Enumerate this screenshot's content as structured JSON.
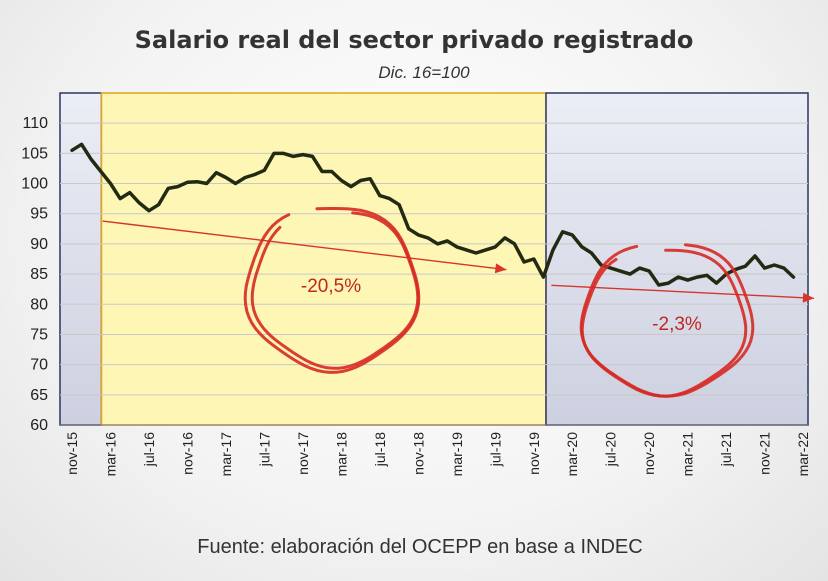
{
  "chart_data": {
    "type": "line",
    "title": "Salario real del sector privado registrado",
    "subtitle": "Dic. 16=100",
    "source": "Fuente: elaboración del OCEPP en base a INDEC",
    "xlabel": "",
    "ylabel": "",
    "ylim": [
      60,
      115
    ],
    "yticks": [
      60,
      65,
      70,
      75,
      80,
      85,
      90,
      95,
      100,
      105,
      110
    ],
    "x_tick_labels": [
      "nov-15",
      "mar-16",
      "jul-16",
      "nov-16",
      "mar-17",
      "jul-17",
      "nov-17",
      "mar-18",
      "jul-18",
      "nov-18",
      "mar-19",
      "jul-19",
      "nov-19",
      "mar-20",
      "jul-20",
      "nov-20",
      "mar-21",
      "jul-21",
      "nov-21",
      "mar-22"
    ],
    "start_month": "nov-15",
    "periods": [
      {
        "name": "period-2015",
        "from_index": 0,
        "to_index": 1,
        "color": "#cdd2e2"
      },
      {
        "name": "period-2016-2019",
        "from_index": 1,
        "to_index": 49,
        "color": "#fdf6b4"
      },
      {
        "name": "period-2020-2022",
        "from_index": 49,
        "to_index": 77,
        "color": "#d9dbe8"
      }
    ],
    "series": [
      {
        "name": "Salario real",
        "color": "#222a12",
        "values": [
          105.5,
          106.5,
          104,
          102,
          100,
          97.5,
          98.5,
          96.8,
          95.5,
          96.5,
          99.2,
          99.5,
          100.2,
          100.3,
          100,
          101.8,
          101,
          100,
          101,
          101.5,
          102.2,
          105,
          105,
          104.5,
          104.8,
          104.5,
          102,
          102,
          100.5,
          99.5,
          100.5,
          100.8,
          98,
          97.5,
          96.5,
          92.5,
          91.5,
          91,
          90,
          90.5,
          89.5,
          89,
          88.5,
          89,
          89.5,
          91,
          90,
          87,
          87.5,
          84.5,
          89,
          92,
          91.5,
          89.5,
          88.5,
          86.5,
          86,
          85.5,
          85,
          86,
          85.5,
          83.2,
          83.5,
          84.5,
          84,
          84.5,
          84.8,
          83.5,
          85,
          85.8,
          86.3,
          88,
          86,
          86.5,
          86,
          84.5
        ]
      }
    ],
    "trends": [
      {
        "name": "trend-2016-2019",
        "label": "-20,5%",
        "from": [
          1,
          94.2
        ],
        "to": [
          49,
          85
        ]
      },
      {
        "name": "trend-2020-2022",
        "label": "-2,3%",
        "from": [
          49,
          83.2
        ],
        "to": [
          77,
          81
        ]
      }
    ]
  }
}
